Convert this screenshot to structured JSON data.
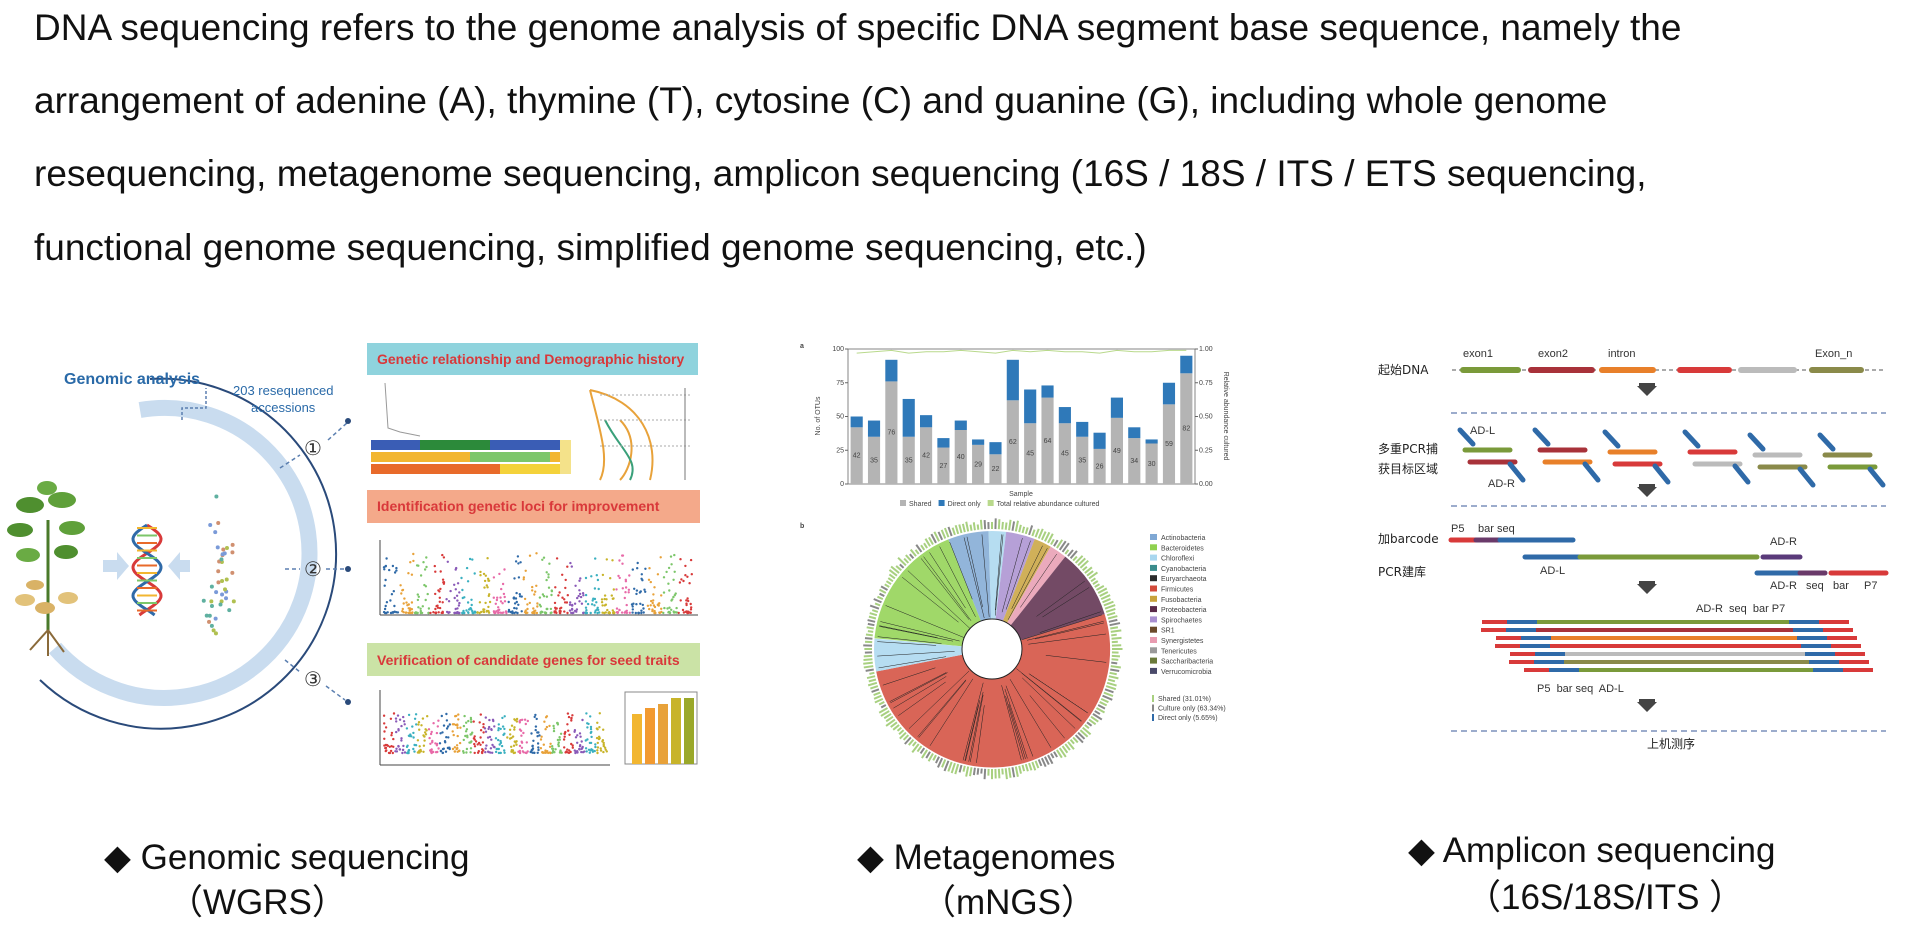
{
  "paragraph": {
    "lines": [
      "DNA sequencing refers to the genome analysis of specific DNA segment base sequence, namely  the",
      "arrangement of adenine (A), thymine (T), cytosine (C) and guanine (G), including whole genome",
      "resequencing, metagenome sequencing, amplicon sequencing (16S / 18S / ITS / ETS sequencing,",
      "functional genome sequencing, simplified genome sequencing, etc.)"
    ]
  },
  "genomic": {
    "caption": [
      "◆ Genomic sequencing",
      "（WGRS）"
    ],
    "title": "Genomic analysis",
    "note": [
      "203 resequenced",
      "accessions"
    ],
    "steps": [
      "①",
      "②",
      "③"
    ],
    "panels": [
      "Genetic relationship and Demographic history",
      "Identification genetic loci for improvement",
      "Verification of candidate genes for seed traits"
    ]
  },
  "metagenome": {
    "caption": [
      "◆ Metagenomes",
      "（mNGS）"
    ],
    "chart_data": {
      "type": "bar",
      "panel": "a",
      "xlabel": "Sample",
      "ylabel": "No. of OTUs",
      "y2label": "Relative abundance cultured",
      "stacked": true,
      "series": [
        {
          "name": "Shared",
          "color": "#b4b4b4",
          "values": [
            42,
            35,
            76,
            35,
            42,
            27,
            40,
            29,
            22,
            62,
            45,
            64,
            45,
            35,
            26,
            49,
            34,
            30,
            59,
            82
          ]
        },
        {
          "name": "Direct only",
          "color": "#2f79b9",
          "values": [
            8,
            12,
            16,
            28,
            9,
            7,
            7,
            4,
            9,
            30,
            25,
            9,
            12,
            11,
            12,
            15,
            8,
            3,
            16,
            13
          ]
        },
        {
          "name": "Total relative abundance cultured",
          "color": "#b9d98c",
          "axis": "y2",
          "type": "line",
          "values": [
            0.97,
            0.98,
            0.99,
            0.97,
            0.98,
            0.98,
            0.99,
            0.98,
            0.97,
            0.99,
            0.98,
            0.99,
            0.98,
            0.98,
            0.97,
            0.99,
            0.98,
            0.98,
            0.99,
            0.99
          ]
        }
      ],
      "ylim": [
        0,
        100
      ],
      "yticks": [
        0,
        25,
        50,
        75,
        100
      ],
      "y2lim": [
        0,
        1
      ],
      "y2ticks": [
        {
          "value": 0,
          "label": "0.00"
        },
        {
          "value": 0.25,
          "label": "0.25"
        },
        {
          "value": 0.5,
          "label": "0.50"
        },
        {
          "value": 0.75,
          "label": "0.75"
        },
        {
          "value": 1,
          "label": "1.00"
        }
      ]
    },
    "tree": {
      "panel": "b",
      "legend": [
        {
          "name": "Actinobacteria",
          "color": "#7fa8d4"
        },
        {
          "name": "Bacteroidetes",
          "color": "#8fd14f"
        },
        {
          "name": "Chloroflexi",
          "color": "#a9d7ef"
        },
        {
          "name": "Cyanobacteria",
          "color": "#3a8c8c"
        },
        {
          "name": "Euryarchaeota",
          "color": "#2b2b2b"
        },
        {
          "name": "Firmicutes",
          "color": "#d24a3a"
        },
        {
          "name": "Fusobacteria",
          "color": "#c8a23c"
        },
        {
          "name": "Proteobacteria",
          "color": "#5a2a4a"
        },
        {
          "name": "Spirochaetes",
          "color": "#a98fd0"
        },
        {
          "name": "SR1",
          "color": "#6b4a2a"
        },
        {
          "name": "Synergistetes",
          "color": "#e89bb0"
        },
        {
          "name": "Tenericutes",
          "color": "#9a9a9a"
        },
        {
          "name": "Saccharibacteria",
          "color": "#6a7a3a"
        },
        {
          "name": "Verrucomicrobia",
          "color": "#4a4a6a"
        }
      ],
      "rings": [
        "Shared (31.01%)",
        "Culture only (63.34%)",
        "Direct only (5.65%)"
      ]
    }
  },
  "amplicon": {
    "caption": [
      "◆ Amplicon sequencing",
      "（16S/18S/ITS ）"
    ],
    "steps": [
      "起始DNA",
      "多重PCR捕",
      "获目标区域",
      "加barcode",
      "PCR建库",
      "上机测序"
    ],
    "exons": [
      "exon1",
      "exon2",
      "intron",
      "Exon_n"
    ],
    "labels": {
      "adl1": "AD-L",
      "adr1": "AD-R",
      "p5": "P5",
      "barseq": "bar seq",
      "adr2": "AD-R",
      "adl2": "AD-L",
      "adr3": "AD-R",
      "seq3": "seq",
      "bar3": "bar",
      "p7": "P7",
      "top": "AD-R  seq  bar P7",
      "bottom": "P5  bar seq  AD-L"
    }
  }
}
